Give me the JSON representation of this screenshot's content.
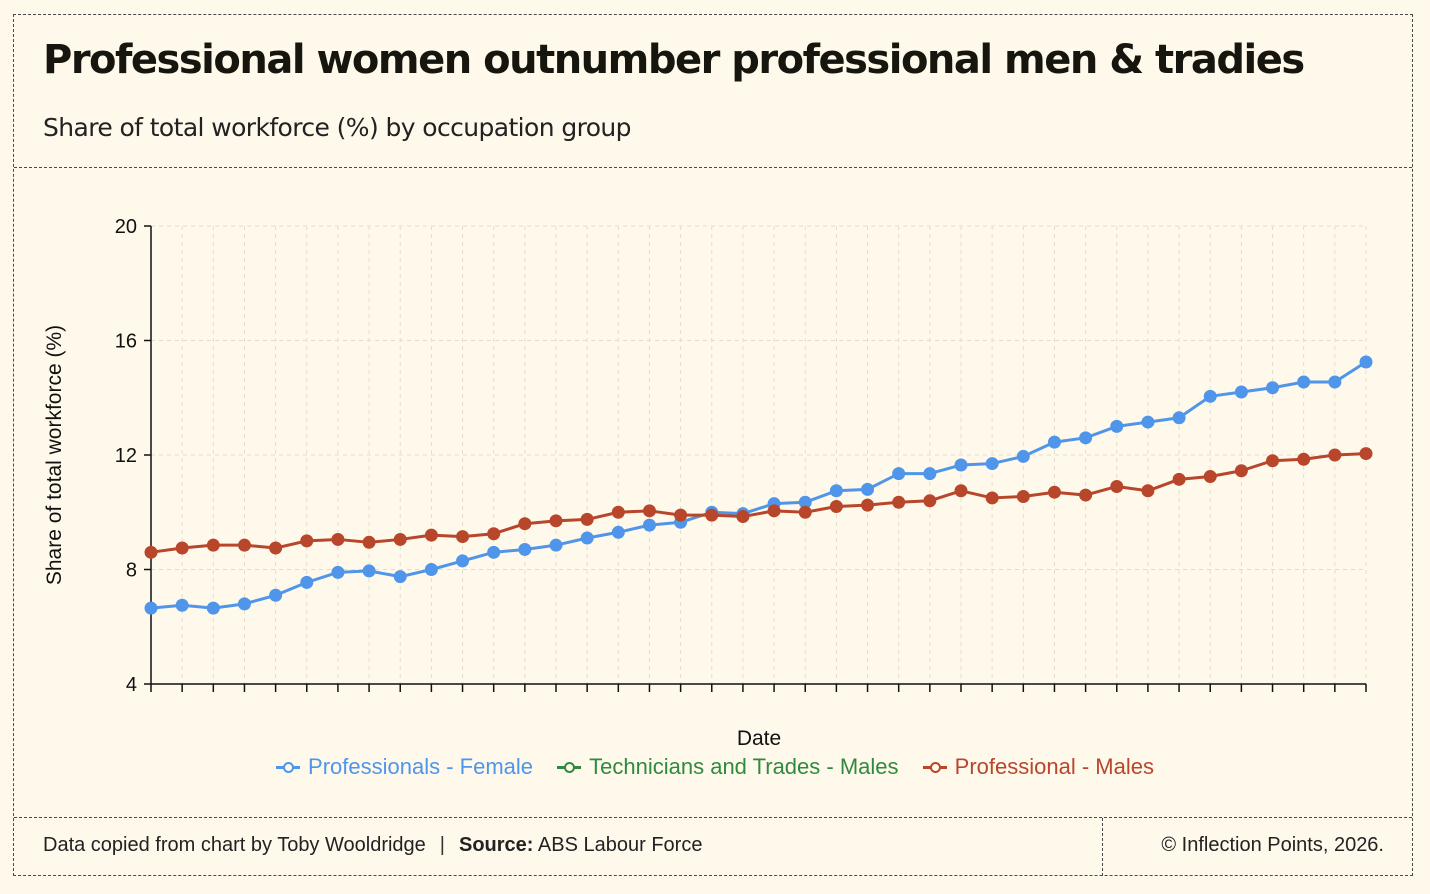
{
  "header": {
    "title": "Professional women outnumber professional men & tradies",
    "subtitle": "Share of total workforce (%) by occupation group"
  },
  "footer": {
    "credit": "Data copied from chart by Toby Wooldridge",
    "separator": "|",
    "source_label": "Source:",
    "source_value": "ABS Labour Force",
    "copyright": "© Inflection Points, 2026."
  },
  "colors": {
    "background": "#fff9ec",
    "female_professionals": "#4f95e9",
    "male_trades": "#2f8a3f",
    "male_professionals": "#b8462b"
  },
  "chart_data": {
    "type": "line",
    "title": "Professional women outnumber professional men & tradies",
    "xlabel": "Date",
    "ylabel": "Share of total workforce (%)",
    "ylim": [
      4,
      20
    ],
    "yticks": [
      4,
      8,
      12,
      16,
      20
    ],
    "grid": true,
    "legend_position": "bottom-center",
    "x_point_count": 40,
    "series": [
      {
        "name": "Professionals - Female",
        "color": "#4f95e9",
        "values": [
          6.65,
          6.75,
          6.65,
          6.8,
          7.1,
          7.55,
          7.9,
          7.95,
          7.75,
          8.0,
          8.3,
          8.6,
          8.7,
          8.85,
          9.1,
          9.3,
          9.55,
          9.65,
          10.0,
          9.95,
          10.3,
          10.35,
          10.75,
          10.8,
          11.35,
          11.35,
          11.65,
          11.7,
          11.95,
          12.45,
          12.6,
          13.0,
          13.15,
          13.3,
          14.05,
          14.2,
          14.35,
          14.55,
          14.55,
          15.25
        ]
      },
      {
        "name": "Technicians and Trades - Males",
        "color": "#2f8a3f",
        "values": []
      },
      {
        "name": "Professional - Males",
        "color": "#b8462b",
        "values": [
          8.6,
          8.75,
          8.85,
          8.85,
          8.75,
          9.0,
          9.05,
          8.95,
          9.05,
          9.2,
          9.15,
          9.25,
          9.6,
          9.7,
          9.75,
          10.0,
          10.05,
          9.9,
          9.9,
          9.85,
          10.05,
          10.0,
          10.2,
          10.25,
          10.35,
          10.4,
          10.75,
          10.5,
          10.55,
          10.7,
          10.6,
          10.9,
          10.75,
          11.15,
          11.25,
          11.45,
          11.8,
          11.85,
          12.0,
          12.05
        ]
      }
    ]
  }
}
